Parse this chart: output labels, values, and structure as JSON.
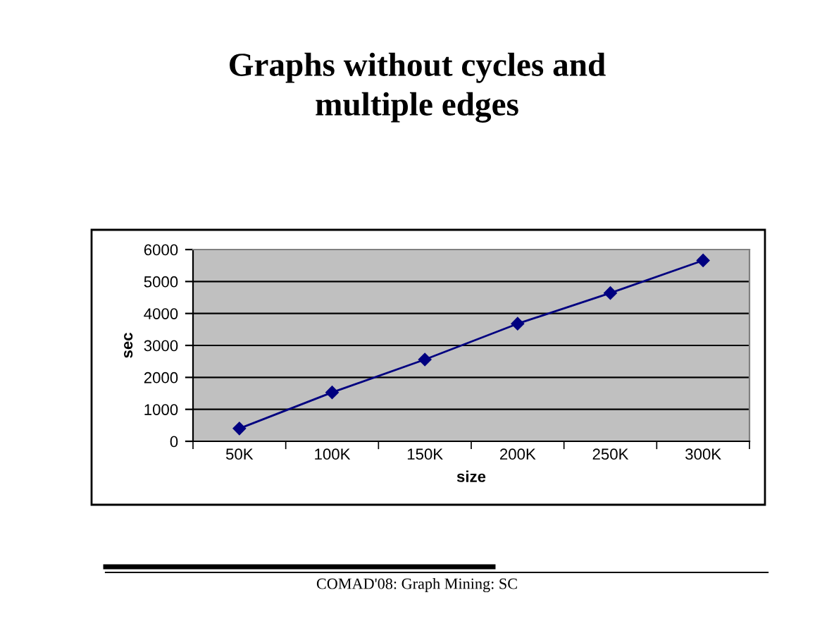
{
  "chart_data": {
    "type": "line",
    "title": "Graphs without cycles and\nmultiple edges",
    "xlabel": "size",
    "ylabel": "sec",
    "categories": [
      "50K",
      "100K",
      "150K",
      "200K",
      "250K",
      "300K"
    ],
    "series": [
      {
        "color": "#000080",
        "values": [
          400,
          1530,
          2560,
          3680,
          4640,
          5660
        ]
      }
    ],
    "ylim": [
      0,
      6000
    ],
    "yticks": [
      0,
      1000,
      2000,
      3000,
      4000,
      5000,
      6000
    ],
    "grid": "y",
    "marker": "diamond",
    "line_style": "solid",
    "legend": false,
    "annotations": [
      "COMAD'08: Graph Mining: SC"
    ]
  }
}
